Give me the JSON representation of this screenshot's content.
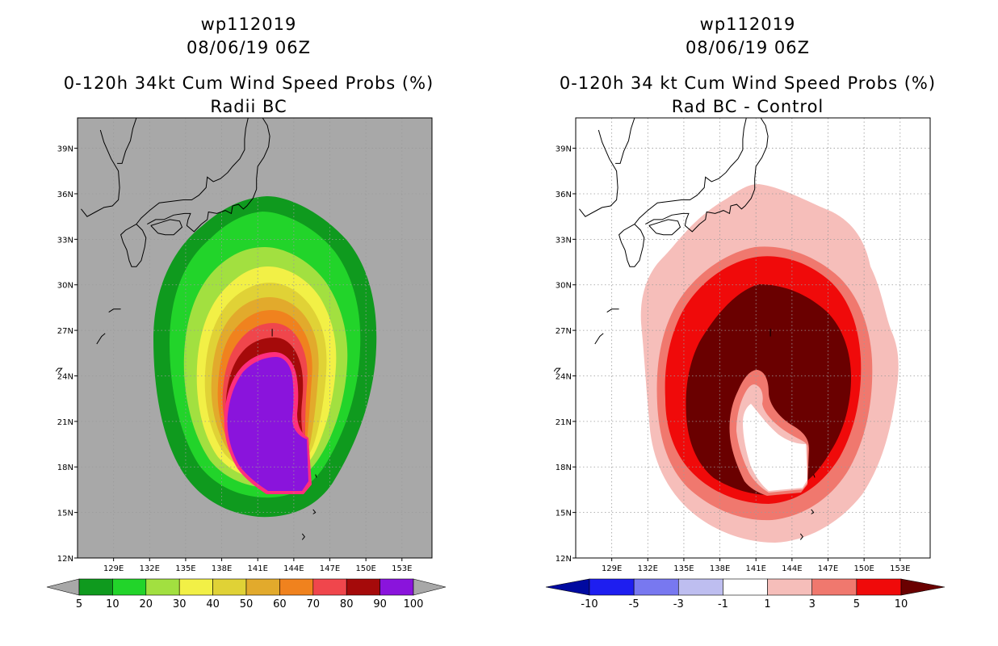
{
  "panels": [
    {
      "title_line1": "wp112019",
      "title_line2": "08/06/19 06Z",
      "title_line3": "0-120h 34kt Cum Wind Speed Probs (%)",
      "title_line4": "Radii BC",
      "colorbar": {
        "labels": [
          "5",
          "10",
          "20",
          "30",
          "40",
          "50",
          "60",
          "70",
          "80",
          "90",
          "100"
        ],
        "colors": [
          "#0f9a1e",
          "#22d42a",
          "#a2e040",
          "#f2f046",
          "#e0d236",
          "#e2aa2c",
          "#f0821e",
          "#f0464c",
          "#a50a0a",
          "#8a14dc"
        ]
      }
    },
    {
      "title_line1": "wp112019",
      "title_line2": "08/06/19 06Z",
      "title_line3": "0-120h 34 kt Cum Wind Speed Probs (%)",
      "title_line4": "Rad BC - Control",
      "colorbar": {
        "labels": [
          "-10",
          "-5",
          "-3",
          "-1",
          "1",
          "3",
          "5",
          "10"
        ],
        "colors": [
          "#000aa0",
          "#1e1ef0",
          "#7878f0",
          "#bebef0",
          "#ffffff",
          "#f6beba",
          "#f0786e",
          "#f00a0a",
          "#6a0000"
        ]
      }
    }
  ],
  "map": {
    "lat_ticks": [
      "12N",
      "15N",
      "18N",
      "21N",
      "24N",
      "27N",
      "30N",
      "33N",
      "36N",
      "39N"
    ],
    "lon_ticks": [
      "129E",
      "132E",
      "135E",
      "138E",
      "141E",
      "144E",
      "147E",
      "150E",
      "153E"
    ],
    "lat_range": [
      12,
      41
    ],
    "lon_range": [
      126,
      155.5
    ],
    "left_background": "#a8a8a8",
    "right_background": "#ffffff"
  }
}
